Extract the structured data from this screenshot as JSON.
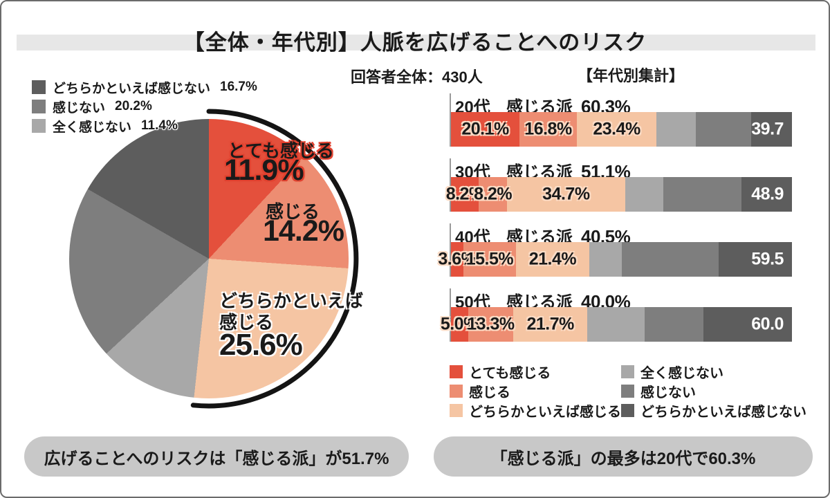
{
  "title": "【全体・年代別】人脈を広げることへのリスク",
  "overall": {
    "respondents_label": "回答者全体：430人"
  },
  "age_section": {
    "heading": "【年代別集計】"
  },
  "palette": {
    "totemo_kanjiru": "#e4503c",
    "kanjiru": "#ed8d72",
    "dochira_kanjiru": "#f5c5a3",
    "mattaku_kanjinai": "#a8a8a8",
    "kanjinai": "#7e7e7e",
    "dochira_kanjinai": "#5d5d5d",
    "highlight_arc": "#141414",
    "capsule_bg": "#c8c8c8",
    "title_band": "#e7e7e7",
    "frame_border": "#6b6b6b"
  },
  "pie_legend": [
    {
      "label": "どちらかといえば感じない",
      "value": "16.7%",
      "color": "#5d5d5d"
    },
    {
      "label": "感じない",
      "value": "20.2%",
      "color": "#7e7e7e"
    },
    {
      "label": "全く感じない",
      "value": "11.4%",
      "color": "#a8a8a8"
    }
  ],
  "pie_labels": {
    "totemo": {
      "name": "とても感じる",
      "value": "11.9%"
    },
    "kanjiru": {
      "name": "感じる",
      "value": "14.2%"
    },
    "dochira": {
      "line1": "どちらかといえば",
      "line2": "感じる",
      "value": "25.6%"
    }
  },
  "chart_data": [
    {
      "type": "pie",
      "title": "回答者全体：430人",
      "unit": "%",
      "labels": [
        "とても感じる",
        "感じる",
        "どちらかといえば感じる",
        "全く感じない",
        "感じない",
        "どちらかといえば感じない"
      ],
      "values": [
        11.9,
        14.2,
        25.6,
        11.4,
        20.2,
        16.7
      ],
      "colors": [
        "#e4503c",
        "#ed8d72",
        "#f5c5a3",
        "#a8a8a8",
        "#7e7e7e",
        "#5d5d5d"
      ],
      "start": "12時位置から時計回り",
      "highlight": {
        "label": "感じる派",
        "value": 51.7,
        "style": "黒い外周アーク（最初の3スライス分）"
      }
    },
    {
      "type": "bar",
      "subtype": "stacked-horizontal",
      "heading": "【年代別集計】",
      "unit": "%",
      "series_names": [
        "とても感じる",
        "感じる",
        "どちらかといえば感じる",
        "全く感じない",
        "感じない",
        "どちらかといえば感じない"
      ],
      "colors": [
        "#e4503c",
        "#ed8d72",
        "#f5c5a3",
        "#a8a8a8",
        "#7e7e7e",
        "#5d5d5d"
      ],
      "xlim": [
        0,
        100
      ],
      "rows": [
        {
          "age": "20代",
          "group_label": "感じる派",
          "group_value": "60.3%",
          "segments": [
            {
              "pct": 20.1,
              "label": "20.1%"
            },
            {
              "pct": 16.8,
              "label": "16.8%"
            },
            {
              "pct": 23.4,
              "label": "23.4%"
            },
            {
              "pct": 11.6,
              "estimated": true
            },
            {
              "pct": 16.2,
              "estimated": true
            },
            {
              "pct": 11.9,
              "estimated": true,
              "label": "39.7",
              "label_style": "total"
            }
          ]
        },
        {
          "age": "30代",
          "group_label": "感じる派",
          "group_value": "51.1%",
          "segments": [
            {
              "pct": 8.2,
              "label": "8.2%"
            },
            {
              "pct": 8.2,
              "label": "8.2%"
            },
            {
              "pct": 34.7,
              "label": "34.7%"
            },
            {
              "pct": 11.2,
              "estimated": true
            },
            {
              "pct": 22.9,
              "estimated": true
            },
            {
              "pct": 14.8,
              "estimated": true,
              "label": "48.9",
              "label_style": "total"
            }
          ]
        },
        {
          "age": "40代",
          "group_label": "感じる派",
          "group_value": "40.5%",
          "segments": [
            {
              "pct": 3.6,
              "label": "3.6%"
            },
            {
              "pct": 15.5,
              "label": "15.5%"
            },
            {
              "pct": 21.4,
              "label": "21.4%"
            },
            {
              "pct": 9.7,
              "estimated": true
            },
            {
              "pct": 28.4,
              "estimated": true
            },
            {
              "pct": 21.4,
              "estimated": true,
              "label": "59.5",
              "label_style": "total"
            }
          ]
        },
        {
          "age": "50代",
          "group_label": "感じる派",
          "group_value": "40.0%",
          "segments": [
            {
              "pct": 5.0,
              "label": "5.0%"
            },
            {
              "pct": 13.3,
              "label": "13.3%"
            },
            {
              "pct": 21.7,
              "label": "21.7%"
            },
            {
              "pct": 16.8,
              "estimated": true
            },
            {
              "pct": 17.2,
              "estimated": true
            },
            {
              "pct": 26.0,
              "estimated": true,
              "label": "60.0",
              "label_style": "total"
            }
          ]
        }
      ]
    }
  ],
  "bottom_legend": {
    "left": [
      {
        "label": "とても感じる",
        "color": "#e4503c"
      },
      {
        "label": "感じる",
        "color": "#ed8d72"
      },
      {
        "label": "どちらかといえば感じる",
        "color": "#f5c5a3"
      }
    ],
    "right": [
      {
        "label": "全く感じない",
        "color": "#a8a8a8"
      },
      {
        "label": "感じない",
        "color": "#7e7e7e"
      },
      {
        "label": "どちらかといえば感じない",
        "color": "#5d5d5d"
      }
    ]
  },
  "summaries": {
    "left": "広げることへのリスクは「感じる派」が51.7%",
    "right": "「感じる派」の最多は20代で60.3%"
  }
}
